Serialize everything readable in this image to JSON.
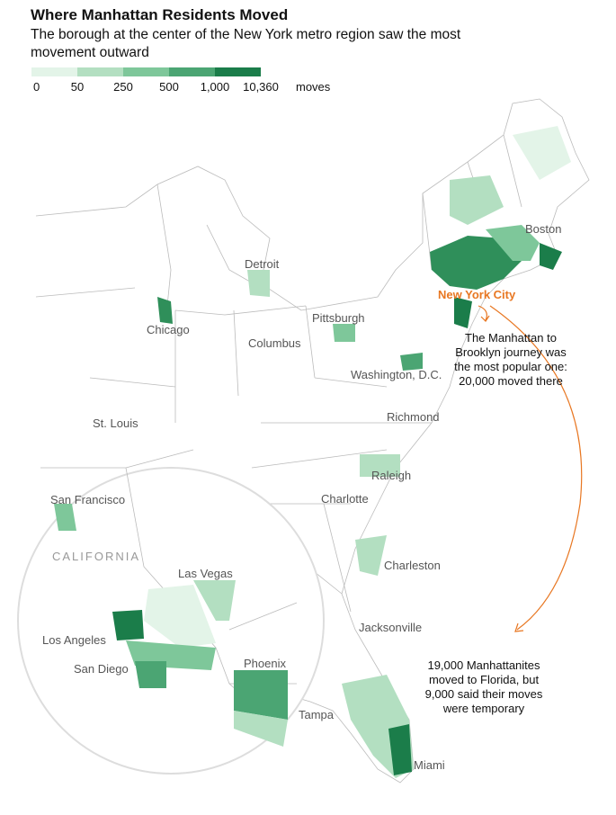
{
  "header": {
    "title": "Where Manhattan Residents Moved",
    "subtitle_lines": [
      "The borough at the center of the New York metro region saw the most",
      "movement outward"
    ]
  },
  "legend": {
    "ticks": [
      "0",
      "50",
      "250",
      "500",
      "1,000",
      "10,360"
    ],
    "unit": "moves",
    "colors": [
      "#e3f4e8",
      "#b3dfc1",
      "#7ec79a",
      "#4ba573",
      "#1b7d4a"
    ]
  },
  "labels": [
    "Boston",
    "Detroit",
    "Chicago",
    "Pittsburgh",
    "Columbus",
    "Washington, D.C.",
    "Richmond",
    "St. Louis",
    "Raleigh",
    "Charlotte",
    "Charleston",
    "Jacksonville",
    "Tampa",
    "Miami",
    "San Francisco",
    "Las Vegas",
    "Los Angeles",
    "San Diego",
    "Phoenix"
  ],
  "highlight_label": "New York City",
  "region_label": "CALIFORNIA",
  "annotations": [
    {
      "lines": [
        "The Manhattan to",
        "Brooklyn journey was",
        "the most popular one:",
        "20,000 moved there"
      ]
    },
    {
      "lines": [
        "19,000 Manhattanites",
        "moved to Florida, but",
        "9,000 said their moves",
        "were temporary"
      ]
    }
  ]
}
